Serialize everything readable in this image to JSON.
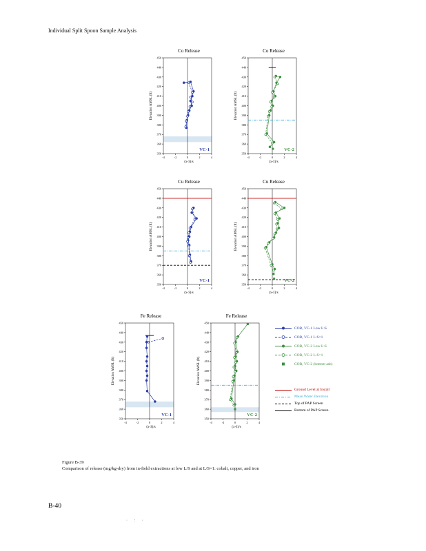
{
  "page": {
    "header": "Individual Split Spoon Sample Analysis",
    "figure_label": "Figure B-39",
    "figure_caption": "Comparison of release (mg/kg-dry) from in-field extractions at low L/S and at L/S=1: cobalt, copper, and iron",
    "page_number": "B-40",
    "footer_marks": "· : ·"
  },
  "colors": {
    "vc1_blue": "#2A3DA8",
    "vc2_green": "#3E8E41",
    "ground_red": "#C00000",
    "water_cyan": "#3FAEDB",
    "screen_black": "#000000",
    "band_blue": "#D8E6F2"
  },
  "legend": {
    "items": [
      {
        "label": "COR, VC-1 Low L:S",
        "color": "#2A3DA8",
        "line": "solid",
        "marker": "circle-filled"
      },
      {
        "label": "COR, VC-1 L:S=1",
        "color": "#2A3DA8",
        "line": "dashed",
        "marker": "circle-open"
      },
      {
        "label": "COR, VC-2 Low L:S",
        "color": "#3E8E41",
        "line": "solid",
        "marker": "circle-filled"
      },
      {
        "label": "COR, VC-2 L:S=1",
        "color": "#3E8E41",
        "line": "dashed",
        "marker": "circle-open"
      },
      {
        "label": "COR, VC-2 (bottom ash)",
        "color": "#3E8E41",
        "line": "none",
        "marker": "square"
      },
      {
        "label": "Ground Level at Install",
        "color": "#C00000",
        "line": "solid",
        "marker": "none"
      },
      {
        "label": "Mean Water Elevation",
        "color": "#3FAEDB",
        "line": "dashdot",
        "marker": "none"
      },
      {
        "label": "Top of PAP Screen",
        "color": "#000000",
        "line": "dashed",
        "marker": "none"
      },
      {
        "label": "Bottom of PAP Screen",
        "color": "#000000",
        "line": "solid",
        "marker": "none"
      }
    ]
  },
  "chart_data": [
    {
      "id": "co-vc1",
      "type": "scatter",
      "title": "Co Release",
      "ylabel": "Elevation AMSL (ft)",
      "xlabel": "(x-x̄)/s",
      "sample_label": "VC-1",
      "sample_color": "#2A3DA8",
      "xlim": [
        -4,
        4
      ],
      "ylim": [
        350,
        450
      ],
      "xticks": [
        -4,
        -2,
        0,
        2,
        4
      ],
      "yticks": [
        450,
        440,
        430,
        420,
        410,
        400,
        390,
        380,
        370,
        360,
        350
      ],
      "band": {
        "top": 368,
        "bottom": 362,
        "color": "#D8E6F2"
      },
      "reflines": [],
      "series": [
        {
          "name": "COR, VC-1 Low L:S",
          "color": "#2A3DA8",
          "dash": "solid",
          "marker": "circle-filled",
          "points": [
            [
              -0.6,
              424
            ],
            [
              0.5,
              425
            ],
            [
              1.0,
              415
            ],
            [
              0.8,
              410
            ],
            [
              0.5,
              405
            ],
            [
              0.7,
              400
            ],
            [
              0.3,
              395
            ],
            [
              0.1,
              390
            ],
            [
              -0.1,
              385
            ],
            [
              -0.2,
              377
            ]
          ]
        },
        {
          "name": "COR, VC-1 L:S=1",
          "color": "#2A3DA8",
          "dash": "dashed",
          "marker": "circle-open",
          "points": [
            [
              0.2,
              424
            ],
            [
              0.8,
              414
            ],
            [
              0.5,
              409
            ],
            [
              0.8,
              404
            ],
            [
              0.4,
              399
            ],
            [
              0.1,
              394
            ],
            [
              0.0,
              389
            ],
            [
              -0.2,
              384
            ],
            [
              -0.3,
              378
            ]
          ]
        }
      ]
    },
    {
      "id": "co-vc2",
      "type": "scatter",
      "title": "Co Release",
      "ylabel": "Elevation AMSL (ft)",
      "xlabel": "(x-x̄)/s",
      "sample_label": "VC-2",
      "sample_color": "#3E8E41",
      "xlim": [
        -4,
        4
      ],
      "ylim": [
        350,
        450
      ],
      "xticks": [
        -4,
        -2,
        0,
        2,
        4
      ],
      "yticks": [
        450,
        440,
        430,
        420,
        410,
        400,
        390,
        380,
        370,
        360,
        350
      ],
      "reflines": [
        {
          "y": 440,
          "color": "#000000",
          "style": "solid",
          "x1": -0.6,
          "x2": 0.6
        },
        {
          "y": 385,
          "color": "#3FAEDB",
          "style": "dashdot"
        }
      ],
      "series": [
        {
          "name": "COR, VC-2 Low L:S",
          "color": "#3E8E41",
          "dash": "solid",
          "marker": "circle-filled",
          "points": [
            [
              0.6,
              431
            ],
            [
              1.3,
              430
            ],
            [
              0.7,
              424
            ],
            [
              0.2,
              415
            ],
            [
              0.5,
              410
            ],
            [
              -0.1,
              405
            ],
            [
              0.1,
              400
            ],
            [
              -0.3,
              395
            ],
            [
              -0.5,
              390
            ],
            [
              -0.9,
              371
            ],
            [
              0.3,
              362
            ],
            [
              -0.4,
              357
            ]
          ]
        },
        {
          "name": "COR, VC-2 L:S=1",
          "color": "#3E8E41",
          "dash": "dashed",
          "marker": "circle-open",
          "points": [
            [
              0.4,
              430
            ],
            [
              0.9,
              423
            ],
            [
              0.0,
              414
            ],
            [
              0.3,
              409
            ],
            [
              -0.3,
              404
            ],
            [
              -0.1,
              399
            ],
            [
              -0.5,
              394
            ],
            [
              -0.7,
              389
            ],
            [
              -1.1,
              370
            ],
            [
              0.0,
              361
            ]
          ]
        },
        {
          "name": "COR, VC-2 (bottom ash)",
          "color": "#3E8E41",
          "dash": "none",
          "marker": "square",
          "points": [
            [
              0.1,
              355
            ]
          ]
        }
      ]
    },
    {
      "id": "cu-vc1",
      "type": "scatter",
      "title": "Cu Release",
      "ylabel": "Elevation AMSL (ft)",
      "xlabel": "(x-x̄)/s",
      "sample_label": "VC-1",
      "sample_color": "#2A3DA8",
      "xlim": [
        -4,
        4
      ],
      "ylim": [
        350,
        450
      ],
      "xticks": [
        -4,
        -2,
        0,
        2,
        4
      ],
      "yticks": [
        450,
        440,
        430,
        420,
        410,
        400,
        390,
        380,
        370,
        360,
        350
      ],
      "reflines": [
        {
          "y": 440,
          "color": "#C00000",
          "style": "solid"
        },
        {
          "y": 385,
          "color": "#3FAEDB",
          "style": "dashdot"
        },
        {
          "y": 370,
          "color": "#000000",
          "style": "dashed"
        }
      ],
      "series": [
        {
          "name": "COR, VC-1 Low L:S",
          "color": "#2A3DA8",
          "dash": "solid",
          "marker": "circle-filled",
          "points": [
            [
              1.0,
              430
            ],
            [
              0.7,
              425
            ],
            [
              1.5,
              419
            ],
            [
              0.6,
              410
            ],
            [
              0.4,
              405
            ],
            [
              0.3,
              400
            ],
            [
              0.1,
              396
            ],
            [
              0.3,
              391
            ],
            [
              0.4,
              381
            ],
            [
              0.6,
              374
            ]
          ]
        },
        {
          "name": "COR, VC-1 L:S=1",
          "color": "#2A3DA8",
          "dash": "dashed",
          "marker": "circle-open",
          "points": [
            [
              0.8,
              429
            ],
            [
              1.2,
              418
            ],
            [
              0.4,
              409
            ],
            [
              0.2,
              404
            ],
            [
              0.1,
              399
            ],
            [
              0.0,
              395
            ],
            [
              0.2,
              390
            ],
            [
              0.3,
              380
            ],
            [
              0.5,
              373
            ]
          ]
        }
      ]
    },
    {
      "id": "cu-vc2",
      "type": "scatter",
      "title": "Cu Release",
      "ylabel": "Elevation AMSL (ft)",
      "xlabel": "(x-x̄)/s",
      "sample_label": "VC-2",
      "sample_color": "#3E8E41",
      "xlim": [
        -4,
        4
      ],
      "ylim": [
        350,
        450
      ],
      "xticks": [
        -4,
        -2,
        0,
        2,
        4
      ],
      "yticks": [
        450,
        440,
        430,
        420,
        410,
        400,
        390,
        380,
        370,
        360,
        350
      ],
      "reflines": [
        {
          "y": 440,
          "color": "#C00000",
          "style": "solid"
        },
        {
          "y": 355,
          "color": "#000000",
          "style": "dashed"
        }
      ],
      "series": [
        {
          "name": "COR, VC-2 Low L:S",
          "color": "#3E8E41",
          "dash": "solid",
          "marker": "circle-filled",
          "points": [
            [
              0.5,
              436
            ],
            [
              2.0,
              430
            ],
            [
              0.6,
              425
            ],
            [
              1.2,
              419
            ],
            [
              0.9,
              414
            ],
            [
              1.1,
              409
            ],
            [
              0.6,
              404
            ],
            [
              0.3,
              399
            ],
            [
              -0.5,
              394
            ],
            [
              -1.0,
              389
            ],
            [
              0.0,
              371
            ],
            [
              0.4,
              366
            ],
            [
              0.2,
              361
            ]
          ]
        },
        {
          "name": "COR, VC-2 L:S=1",
          "color": "#3E8E41",
          "dash": "dashed",
          "marker": "circle-open",
          "points": [
            [
              0.3,
              435
            ],
            [
              1.6,
              429
            ],
            [
              0.4,
              424
            ],
            [
              0.9,
              418
            ],
            [
              0.7,
              413
            ],
            [
              0.8,
              408
            ],
            [
              0.4,
              403
            ],
            [
              0.1,
              398
            ],
            [
              -0.7,
              393
            ],
            [
              -1.2,
              388
            ],
            [
              -0.2,
              370
            ],
            [
              0.2,
              365
            ]
          ]
        },
        {
          "name": "COR, VC-2 (bottom ash)",
          "color": "#3E8E41",
          "dash": "none",
          "marker": "square",
          "points": [
            [
              0.3,
              356
            ]
          ]
        }
      ]
    },
    {
      "id": "fe-vc1",
      "type": "scatter",
      "title": "Fe Release",
      "ylabel": "Elevation AMSL (ft)",
      "xlabel": "(x-x̄)/s",
      "sample_label": "VC-1",
      "sample_color": "#2A3DA8",
      "xlim": [
        -4,
        4
      ],
      "ylim": [
        350,
        450
      ],
      "xticks": [
        -4,
        -2,
        0,
        2,
        4
      ],
      "yticks": [
        450,
        440,
        430,
        420,
        410,
        400,
        390,
        380,
        370,
        360,
        350
      ],
      "band": {
        "top": 368,
        "bottom": 362,
        "color": "#D8E6F2"
      },
      "reflines": [
        {
          "y": 437,
          "color": "#000000",
          "style": "solid",
          "x1": -0.7,
          "x2": 0.7
        }
      ],
      "series": [
        {
          "name": "COR, VC-1 Low L:S",
          "color": "#2A3DA8",
          "dash": "solid",
          "marker": "circle-filled",
          "points": [
            [
              -0.4,
              436
            ],
            [
              -0.5,
              430
            ],
            [
              -0.5,
              424
            ],
            [
              -0.4,
              415
            ],
            [
              -0.5,
              410
            ],
            [
              -0.4,
              405
            ],
            [
              -0.5,
              400
            ],
            [
              -0.4,
              395
            ],
            [
              -0.5,
              390
            ],
            [
              -0.4,
              379
            ],
            [
              0.9,
              368
            ]
          ]
        },
        {
          "name": "COR, VC-1 L:S=1",
          "color": "#2A3DA8",
          "dash": "dashed",
          "marker": "circle-open",
          "points": [
            [
              -0.2,
              430
            ],
            [
              2.2,
              434
            ]
          ]
        }
      ]
    },
    {
      "id": "fe-vc2",
      "type": "scatter",
      "title": "Fe Release",
      "ylabel": "Elevation AMSL (ft)",
      "xlabel": "(x-x̄)/s",
      "sample_label": "VC-2",
      "sample_color": "#3E8E41",
      "xlim": [
        -4,
        4
      ],
      "ylim": [
        350,
        450
      ],
      "xticks": [
        -4,
        -2,
        0,
        2,
        4
      ],
      "yticks": [
        450,
        440,
        430,
        420,
        410,
        400,
        390,
        380,
        370,
        360,
        350
      ],
      "band": {
        "top": 362,
        "bottom": 357,
        "color": "#D8E6F2"
      },
      "reflines": [
        {
          "y": 385,
          "color": "#3FAEDB",
          "style": "dashdot"
        }
      ],
      "series": [
        {
          "name": "COR, VC-2 Low L:S",
          "color": "#3E8E41",
          "dash": "solid",
          "marker": "circle-filled",
          "points": [
            [
              2.1,
              449
            ],
            [
              0.5,
              436
            ],
            [
              0.1,
              430
            ],
            [
              0.4,
              420
            ],
            [
              0.1,
              415
            ],
            [
              0.3,
              410
            ],
            [
              0.0,
              405
            ],
            [
              0.2,
              400
            ],
            [
              -0.1,
              395
            ],
            [
              -0.2,
              390
            ],
            [
              -0.6,
              371
            ],
            [
              0.0,
              365
            ]
          ]
        },
        {
          "name": "COR, VC-2 L:S=1",
          "color": "#3E8E41",
          "dash": "dashed",
          "marker": "circle-open",
          "points": [
            [
              0.3,
              435
            ],
            [
              -0.1,
              429
            ],
            [
              0.2,
              419
            ],
            [
              -0.1,
              414
            ],
            [
              0.1,
              409
            ],
            [
              -0.2,
              404
            ],
            [
              0.0,
              399
            ],
            [
              -0.3,
              394
            ],
            [
              -0.4,
              389
            ],
            [
              -0.8,
              370
            ],
            [
              -0.2,
              364
            ]
          ]
        },
        {
          "name": "COR, VC-2 (bottom ash)",
          "color": "#3E8E41",
          "dash": "none",
          "marker": "square",
          "points": [
            [
              0.0,
              360
            ]
          ]
        }
      ]
    }
  ]
}
